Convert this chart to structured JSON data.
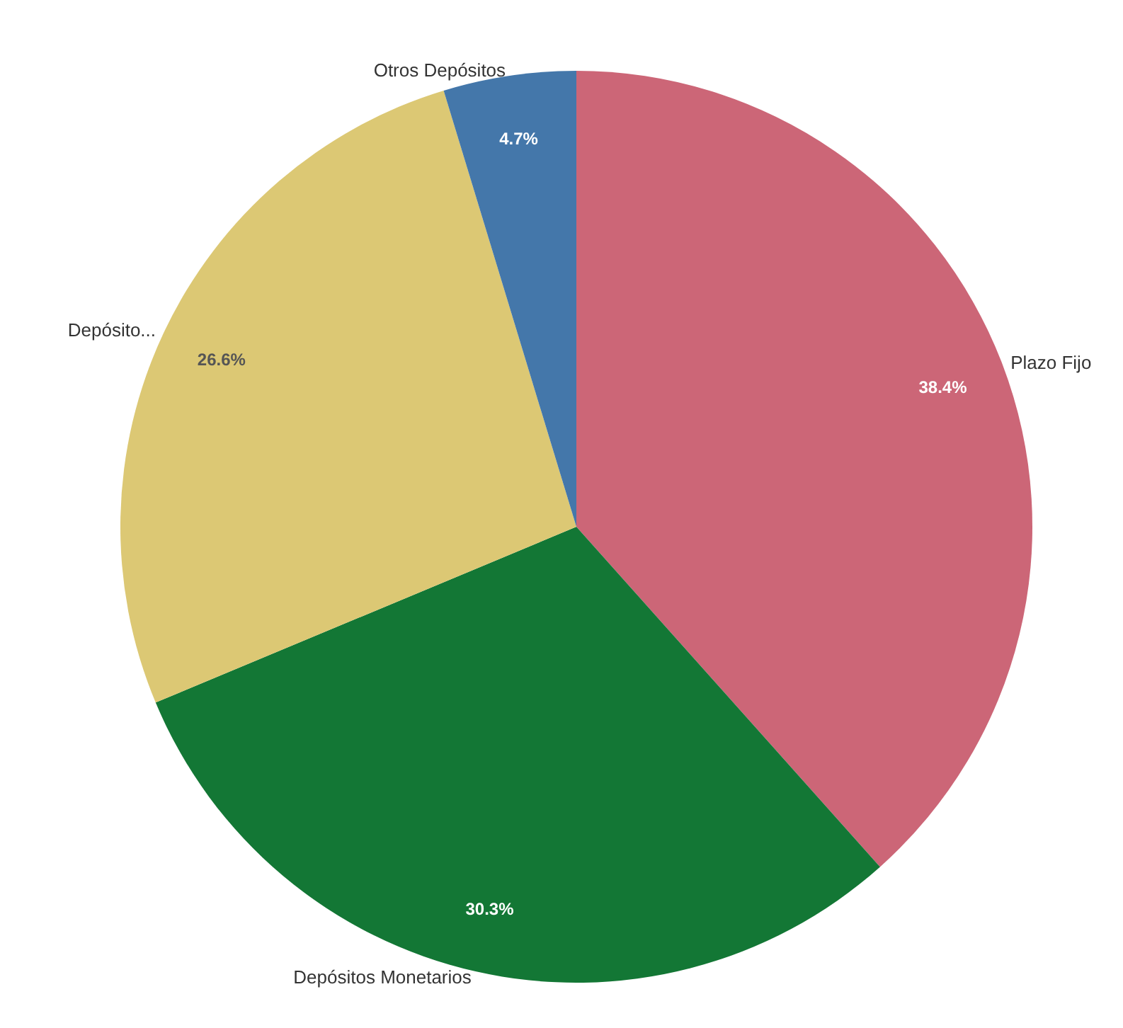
{
  "chart_data": {
    "type": "pie",
    "categories": [
      "Plazo Fijo",
      "Depósitos Monetarios",
      "Depósito...",
      "Otros Depósitos"
    ],
    "values": [
      38.4,
      30.3,
      26.6,
      4.7
    ],
    "colors": [
      "#cc6677",
      "#137735",
      "#dcc874",
      "#4477aa"
    ],
    "value_labels": [
      "38.4%",
      "30.3%",
      "26.6%",
      "4.7%"
    ],
    "legend": false
  }
}
